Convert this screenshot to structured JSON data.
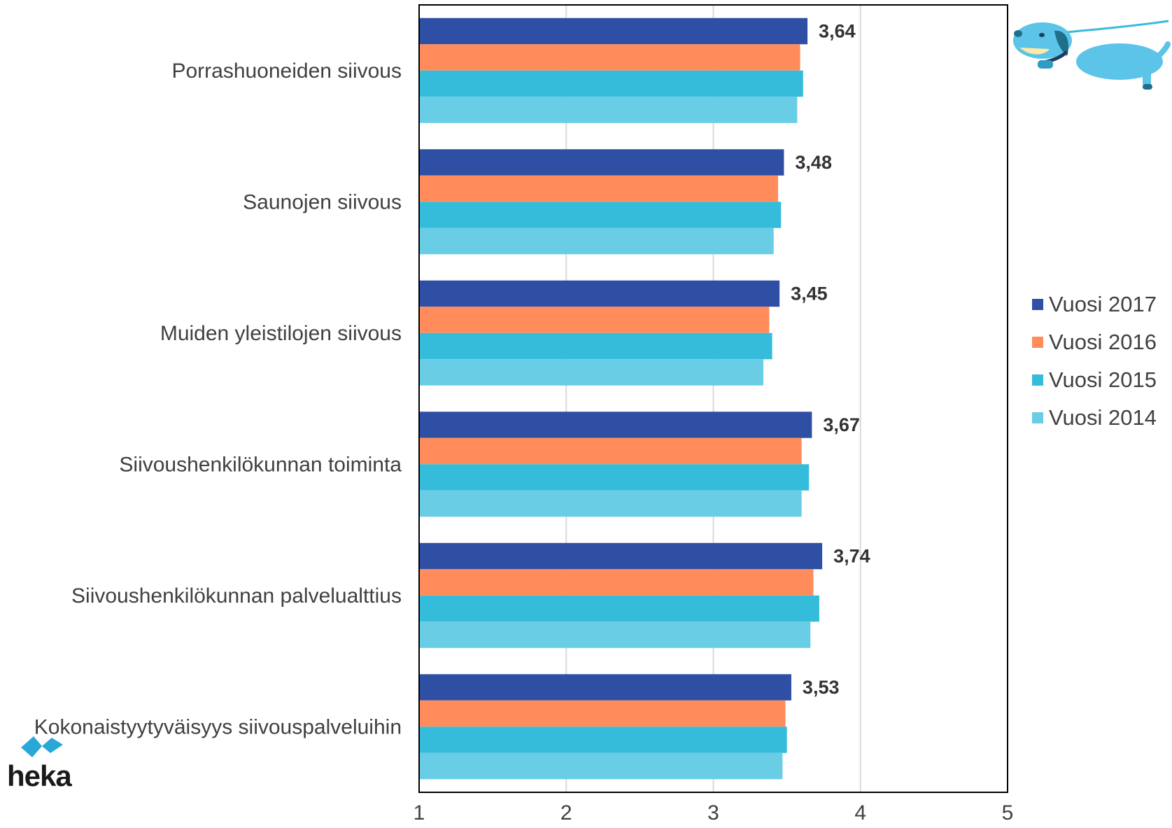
{
  "chart_data": {
    "type": "bar",
    "orientation": "horizontal",
    "categories": [
      "Porrashuoneiden siivous",
      "Saunojen siivous",
      "Muiden yleistilojen siivous",
      "Siivoushenkilökunnan toiminta",
      "Siivoushenkilökunnan palvelualttius",
      "Kokonaistyytyväisyys siivouspalveluihin"
    ],
    "series": [
      {
        "name": "Vuosi 2017",
        "color": "#2E4FA3",
        "values": [
          3.64,
          3.48,
          3.45,
          3.67,
          3.74,
          3.53
        ],
        "labels": [
          "3,64",
          "3,48",
          "3,45",
          "3,67",
          "3,74",
          "3,53"
        ]
      },
      {
        "name": "Vuosi 2016",
        "color": "#FF8C5A",
        "values": [
          3.59,
          3.44,
          3.38,
          3.6,
          3.68,
          3.49
        ],
        "labels": []
      },
      {
        "name": "Vuosi 2015",
        "color": "#35BCDA",
        "values": [
          3.61,
          3.46,
          3.4,
          3.65,
          3.72,
          3.5
        ],
        "labels": []
      },
      {
        "name": "Vuosi 2014",
        "color": "#68CDE5",
        "values": [
          3.57,
          3.41,
          3.34,
          3.6,
          3.66,
          3.47
        ],
        "labels": []
      }
    ],
    "xlim": [
      1,
      5
    ],
    "x_ticks": [
      "1",
      "2",
      "3",
      "4",
      "5"
    ],
    "grid": true,
    "legend_position": "right",
    "title": "",
    "xlabel": "",
    "ylabel": ""
  },
  "logo": {
    "text": "heka",
    "icon": "heka-logo-icon"
  },
  "mascot": {
    "icon": "dog-mascot-icon"
  }
}
